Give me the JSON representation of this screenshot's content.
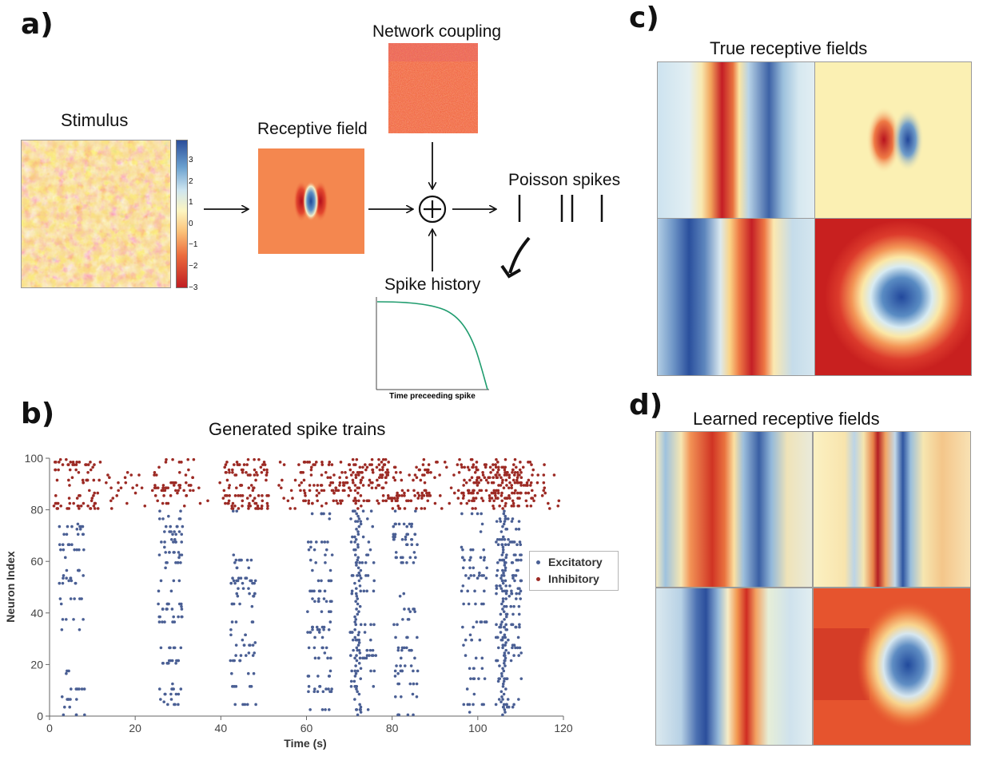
{
  "panels": {
    "a": "a)",
    "b": "b)",
    "c": "c)",
    "d": "d)"
  },
  "diagram": {
    "stimulus_title": "Stimulus",
    "receptive_field_title": "Receptive field",
    "network_coupling_title": "Network coupling",
    "poisson_title": "Poisson spikes",
    "spike_history_title": "Spike history",
    "spike_history_xlabel": "Time preceeding spike",
    "colorbar_ticks": [
      "3",
      "2",
      "1",
      "0",
      "−1",
      "−2",
      "−3"
    ],
    "sum_symbol": "⊕"
  },
  "raster": {
    "title": "Generated spike trains",
    "xlabel": "Time (s)",
    "ylabel": "Neuron Index",
    "legend": [
      {
        "label": "Excitatory",
        "color": "#4a5f94"
      },
      {
        "label": "Inhibitory",
        "color": "#9c2a24"
      }
    ]
  },
  "chart_data": {
    "type": "scatter",
    "title": "Generated spike trains",
    "xlabel": "Time (s)",
    "ylabel": "Neuron Index",
    "xlim": [
      0,
      120
    ],
    "ylim": [
      0,
      100
    ],
    "xticks": [
      0,
      20,
      40,
      60,
      80,
      100,
      120
    ],
    "yticks": [
      0,
      20,
      40,
      60,
      80,
      100
    ],
    "series": [
      {
        "name": "Excitatory",
        "neuron_range": [
          0,
          80
        ],
        "color": "#4a5f94",
        "burst_times_s": [
          4,
          27,
          44,
          62,
          72,
          82,
          98,
          106
        ]
      },
      {
        "name": "Inhibitory",
        "neuron_range": [
          80,
          100
        ],
        "color": "#9c2a24",
        "burst_times_s": [
          4,
          27,
          44,
          62,
          72,
          82,
          98,
          106
        ]
      }
    ]
  },
  "rf_panels": {
    "true_title": "True receptive fields",
    "learned_title": "Learned receptive fields"
  }
}
